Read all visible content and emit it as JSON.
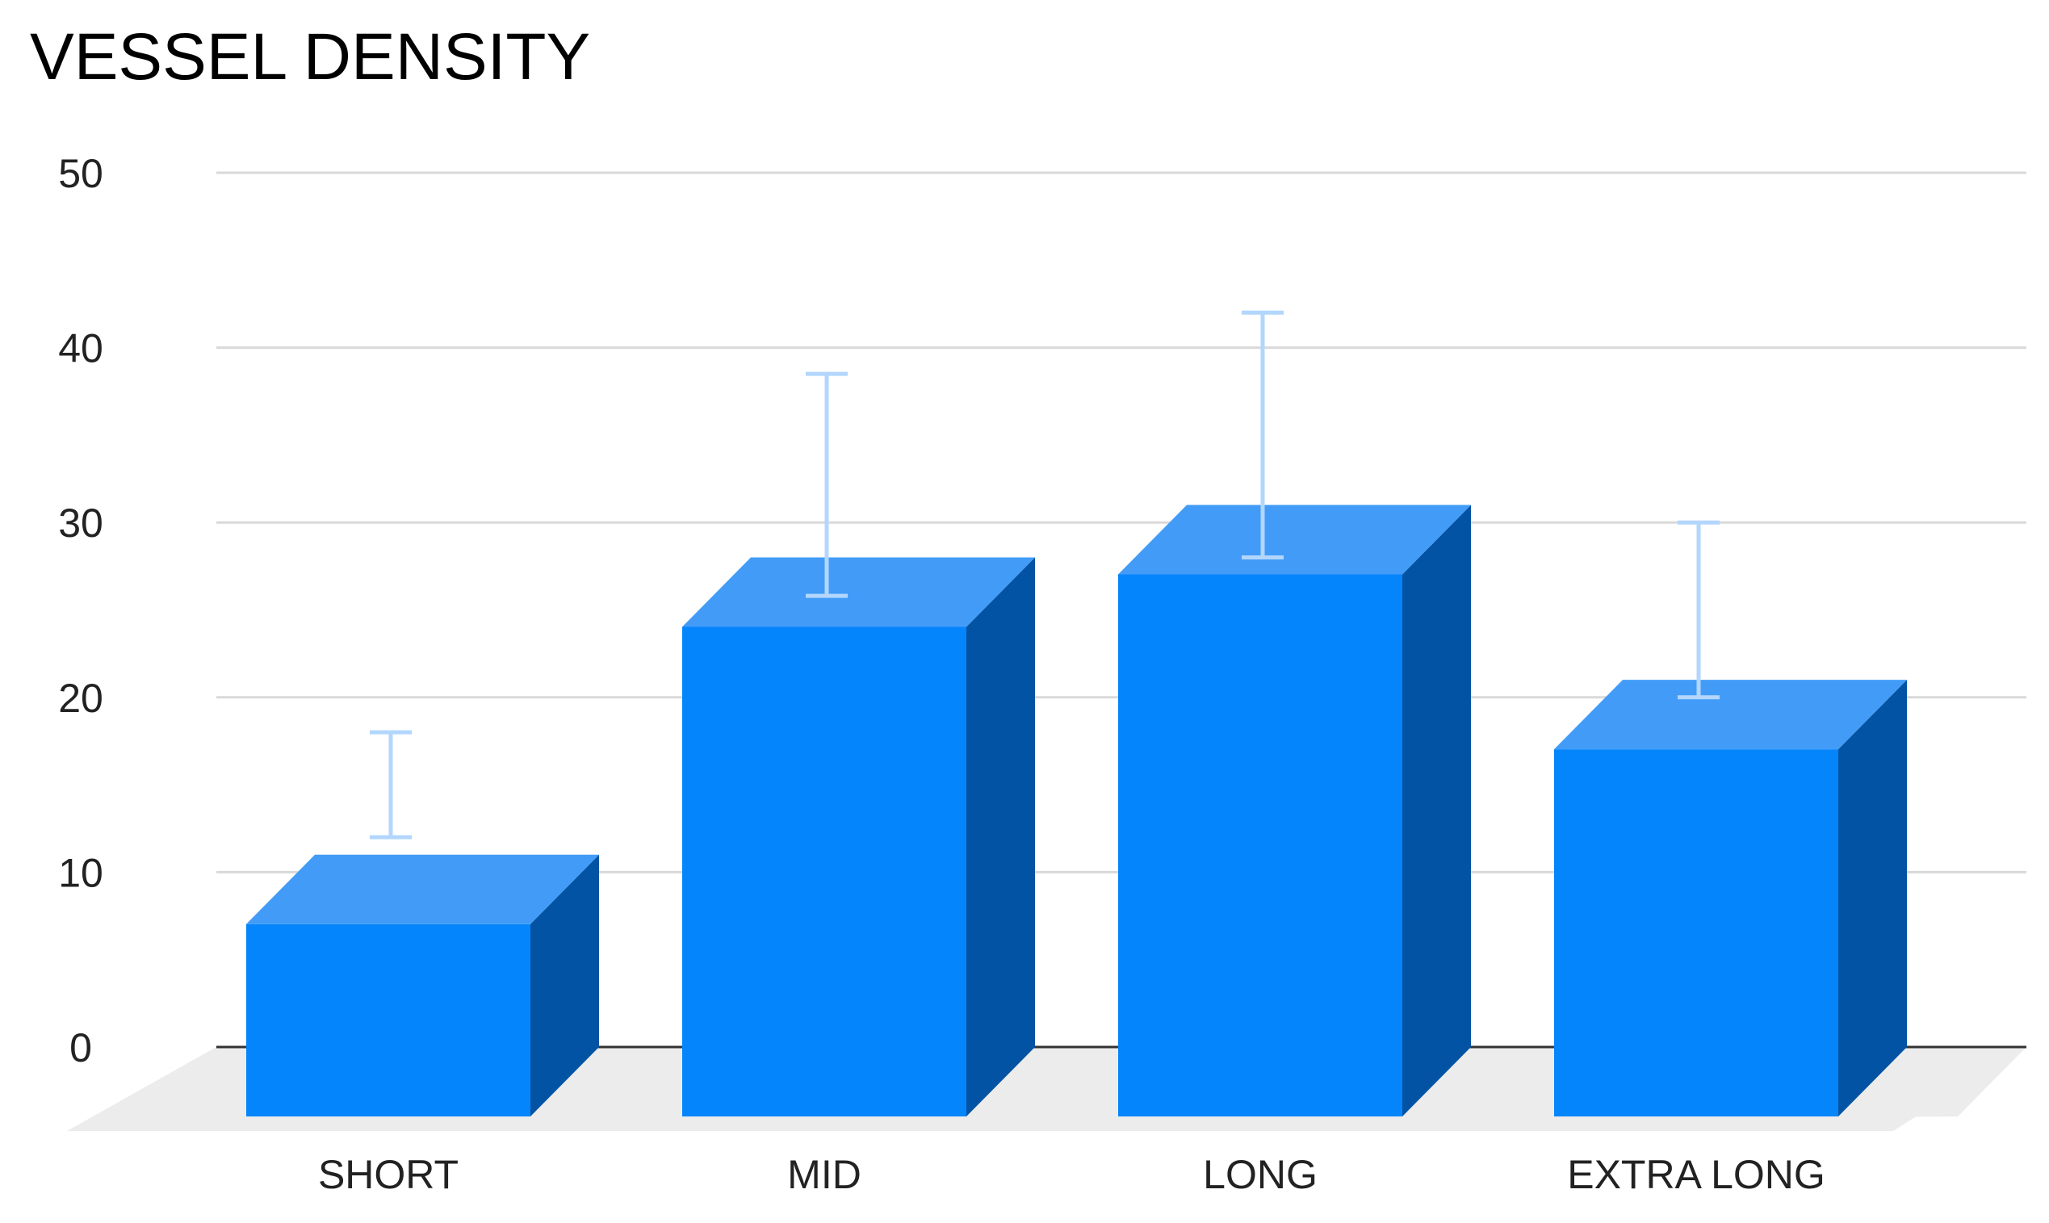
{
  "chart_data": {
    "type": "bar",
    "title": "VESSEL DENSITY",
    "xlabel": "",
    "ylabel": "",
    "categories": [
      "SHORT",
      "MID",
      "LONG",
      "EXTRA LONG"
    ],
    "values": [
      11,
      28,
      31,
      21
    ],
    "error_bars": [
      {
        "low": 12,
        "high": 18
      },
      {
        "low": 25.8,
        "high": 38.5
      },
      {
        "low": 28,
        "high": 42
      },
      {
        "low": 20,
        "high": 30
      }
    ],
    "ylim": [
      0,
      50
    ],
    "yticks": [
      "0",
      "10",
      "20",
      "30",
      "40",
      "50"
    ],
    "grid": true,
    "style": "3d",
    "colors": {
      "bar_front": "#0585fb",
      "bar_top": "#429cf7",
      "bar_side": "#0253a3",
      "floor": "#ececec",
      "gridline": "#d9d9d9",
      "baseline": "#333333",
      "error_bar": "#b3d6fd"
    }
  }
}
